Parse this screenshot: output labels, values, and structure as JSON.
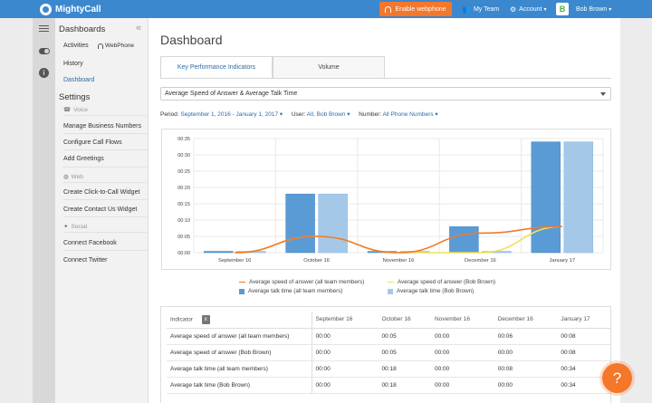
{
  "topbar": {
    "logo_text": "MightyCall",
    "enable_webphone_label": "Enable webphone",
    "my_team_label": "My Team",
    "account_label": "Account",
    "avatar_letter": "B",
    "user_name": "Bob Brown",
    "brand_color": "#3b88cf",
    "accent_color": "#f4772a"
  },
  "sidebar": {
    "title": "Dashboards",
    "collapse_glyph": "«",
    "activities_label": "Activities",
    "webphone_label": "WebPhone",
    "history_label": "History",
    "dashboard_label": "Dashboard",
    "settings_title": "Settings",
    "voice_section": "Voice",
    "manage_numbers_label": "Manage Business Numbers",
    "call_flows_label": "Configure Call Flows",
    "greetings_label": "Add Greetings",
    "web_section": "Web",
    "click_to_call_label": "Create Click-to-Call Widget",
    "contact_us_label": "Create Contact Us Widget",
    "social_section": "Social",
    "facebook_label": "Connect Facebook",
    "twitter_label": "Connect Twitter"
  },
  "main": {
    "title": "Dashboard",
    "tabs": [
      {
        "label": "Key Performance Indicators",
        "active": true
      },
      {
        "label": "Volume",
        "active": false
      }
    ],
    "kpi_select_value": "Average Speed of Answer & Average Talk Time",
    "filters": {
      "period_label": "Period:",
      "period_value": "September 1, 2016 - January 1, 2017",
      "user_label": "User:",
      "user_value": "All, Bob Brown",
      "number_label": "Number:",
      "number_value": "All Phone Numbers"
    }
  },
  "chart_data": {
    "type": "bar",
    "categories": [
      "September 16",
      "October 16",
      "November 16",
      "December 16",
      "January 17"
    ],
    "y_ticks": [
      "00:00",
      "00:05",
      "00:10",
      "00:15",
      "00:20",
      "00:25",
      "00:30",
      "00:35"
    ],
    "ylim": [
      0,
      35
    ],
    "grid": true,
    "legend_position": "bottom",
    "series": [
      {
        "name": "Average speed of answer (all team members)",
        "kind": "line",
        "color": "#f07a2a",
        "values": [
          0,
          5,
          0,
          6,
          8
        ]
      },
      {
        "name": "Average speed of answer (Bob Brown)",
        "kind": "line",
        "color": "#f2e055",
        "values": [
          0,
          5,
          0,
          0,
          8
        ]
      },
      {
        "name": "Average talk time (all team members)",
        "kind": "bar",
        "color": "#5b9bd5",
        "values": [
          0,
          18,
          0,
          8,
          34
        ]
      },
      {
        "name": "Average talk time (Bob Brown)",
        "kind": "bar",
        "color": "#a5c8e8",
        "values": [
          0,
          18,
          0,
          0,
          34
        ]
      }
    ]
  },
  "table": {
    "indicator_header": "Indicator",
    "export_icon_text": "x",
    "columns": [
      "September 16",
      "October 16",
      "November 16",
      "December 16",
      "January 17"
    ],
    "rows": [
      {
        "indicator": "Average speed of answer (all team members)",
        "values": [
          "00:00",
          "00:05",
          "00:00",
          "00:06",
          "00:08"
        ]
      },
      {
        "indicator": "Average speed of answer (Bob Brown)",
        "values": [
          "00:00",
          "00:05",
          "00:00",
          "00:00",
          "00:08"
        ]
      },
      {
        "indicator": "Average talk time (all team members)",
        "values": [
          "00:00",
          "00:18",
          "00:00",
          "00:08",
          "00:34"
        ]
      },
      {
        "indicator": "Average talk time (Bob Brown)",
        "values": [
          "00:00",
          "00:18",
          "00:00",
          "00:00",
          "00:34"
        ]
      }
    ]
  },
  "help": {
    "glyph": "?"
  }
}
